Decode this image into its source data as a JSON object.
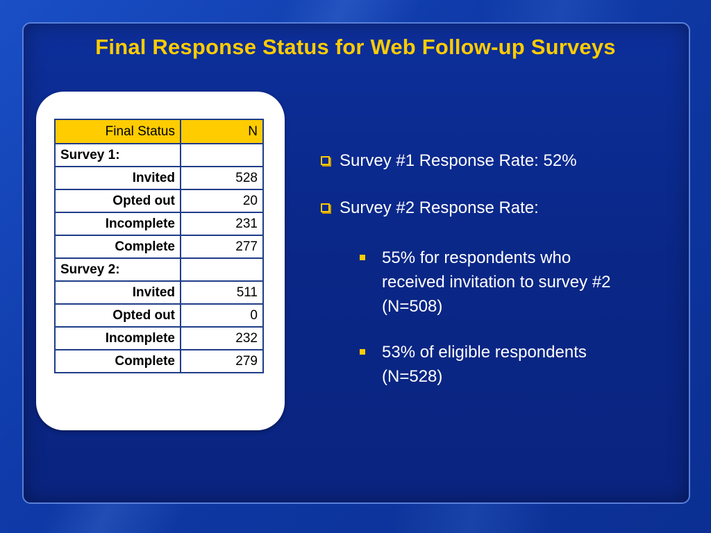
{
  "slide": {
    "title": "Final Response Status for Web Follow-up Surveys"
  },
  "table": {
    "headers": {
      "status": "Final Status",
      "n": "N"
    },
    "survey1": {
      "label": "Survey 1:",
      "rows": [
        {
          "status": "Invited",
          "n": "528"
        },
        {
          "status": "Opted out",
          "n": "20"
        },
        {
          "status": "Incomplete",
          "n": "231"
        },
        {
          "status": "Complete",
          "n": "277"
        }
      ]
    },
    "survey2": {
      "label": "Survey 2:",
      "rows": [
        {
          "status": "Invited",
          "n": "511"
        },
        {
          "status": "Opted out",
          "n": "0"
        },
        {
          "status": "Incomplete",
          "n": "232"
        },
        {
          "status": "Complete",
          "n": "279"
        }
      ]
    }
  },
  "bullets": {
    "item1": "Survey #1 Response Rate: 52%",
    "item2": "Survey #2 Response Rate:",
    "sub1": "55% for respondents who received invitation to survey #2 (N=508)",
    "sub2": "53% of eligible respondents (N=528)"
  },
  "colors": {
    "accent": "#ffcc00",
    "background": "#0a2787",
    "table_border": "#1f3c88"
  }
}
